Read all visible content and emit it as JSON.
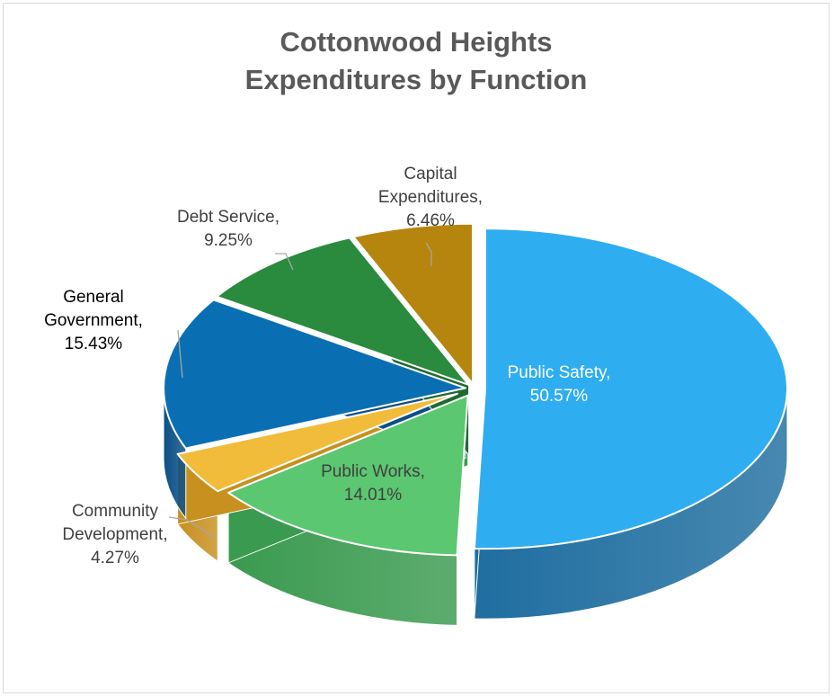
{
  "chart_data": {
    "type": "pie",
    "title_lines": [
      "Cottonwood Heights",
      "Expenditures by Function"
    ],
    "legend": "none",
    "slices": [
      {
        "name": "Public Safety",
        "value": 50.57,
        "label_lines": [
          "Public Safety,",
          "50.57%"
        ],
        "color": "#2eadf0",
        "side_color": "#1f6ea0"
      },
      {
        "name": "Public Works",
        "value": 14.01,
        "label_lines": [
          "Public Works,",
          "14.01%"
        ],
        "color": "#5bc770",
        "side_color": "#3a9a4f"
      },
      {
        "name": "Community Development",
        "value": 4.27,
        "label_lines": [
          "Community",
          "Development,",
          "4.27%"
        ],
        "color": "#f0bc3a",
        "side_color": "#c7901f"
      },
      {
        "name": "General Government",
        "value": 15.43,
        "label_lines": [
          "General",
          "Government,",
          "15.43%"
        ],
        "color": "#0a6fb2",
        "side_color": "#0a4f86"
      },
      {
        "name": "Debt Service",
        "value": 9.25,
        "label_lines": [
          "Debt Service,",
          "9.25%"
        ],
        "color": "#2a8a3e",
        "side_color": "#1f6a2e"
      },
      {
        "name": "Capital Expenditures",
        "value": 6.46,
        "label_lines": [
          "Capital",
          "Expenditures,",
          "6.46%"
        ],
        "color": "#b5850e",
        "side_color": "#8c6408"
      }
    ]
  }
}
